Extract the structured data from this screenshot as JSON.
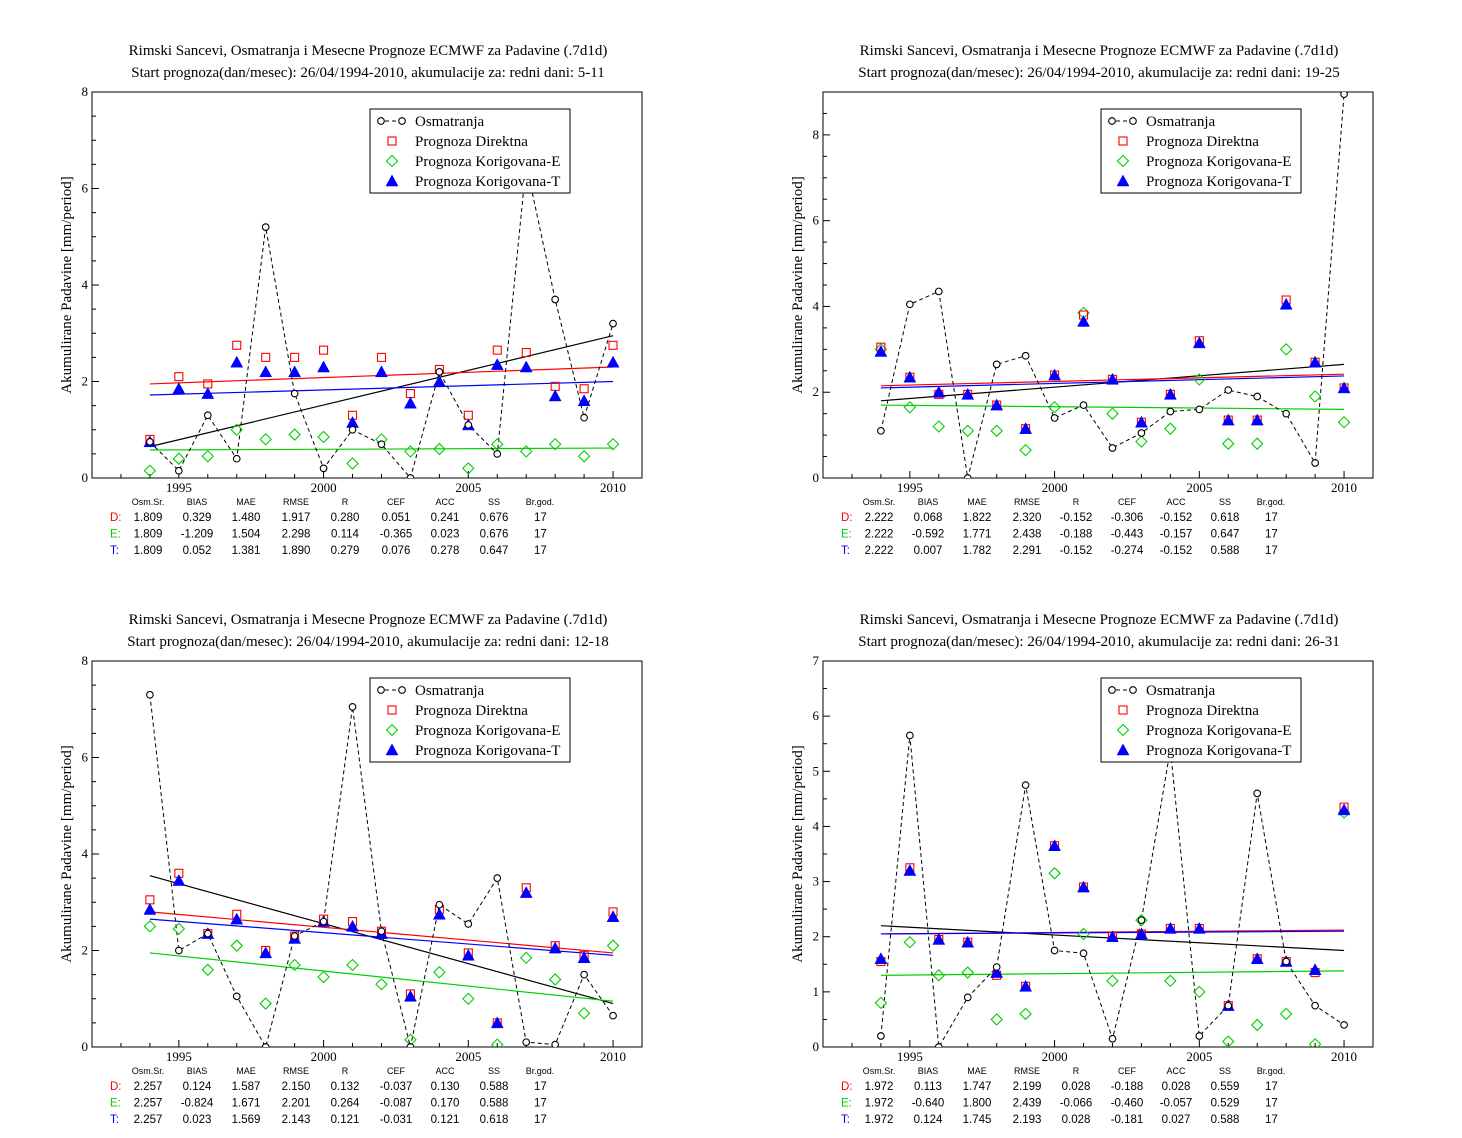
{
  "colors": {
    "observed": "#000000",
    "direct": "#ff0000",
    "corrected_e": "#00d000",
    "corrected_t": "#0000ff"
  },
  "chart_data": [
    {
      "type": "scatter",
      "title": "Rimski Sancevi, Osmatranja i Mesecne Prognoze ECMWF za Padavine (.7d1d)",
      "subtitle": "Start prognoza(dan/mesec): 26/04/1994-2010, akumulacije za: redni dani: 5-11",
      "xlabel": "",
      "ylabel": "Akumulirane Padavine [mm/period]",
      "xlim": [
        1992,
        2011
      ],
      "ylim": [
        0,
        8
      ],
      "x_ticks": [
        1995,
        2000,
        2005,
        2010
      ],
      "y_ticks": [
        0,
        2,
        4,
        6,
        8
      ],
      "x": [
        1994,
        1995,
        1996,
        1997,
        1998,
        1999,
        2000,
        2001,
        2002,
        2003,
        2004,
        2005,
        2006,
        2007,
        2008,
        2009,
        2010
      ],
      "legend_position": "top-right",
      "series": [
        {
          "name": "Osmatranja",
          "style": "observed",
          "values": [
            0.75,
            0.15,
            1.3,
            0.4,
            5.2,
            1.75,
            0.2,
            1.0,
            0.7,
            0.0,
            2.2,
            1.1,
            0.5,
            6.5,
            3.7,
            1.25,
            3.2
          ]
        },
        {
          "name": "Prognoza Direktna",
          "style": "direct",
          "values": [
            0.8,
            2.1,
            1.95,
            2.75,
            2.5,
            2.5,
            2.65,
            1.3,
            2.5,
            1.75,
            2.25,
            1.3,
            2.65,
            2.6,
            1.9,
            1.85,
            2.75
          ]
        },
        {
          "name": "Prognoza Korigovana-E",
          "style": "corrected_e",
          "values": [
            0.15,
            0.4,
            0.45,
            1.0,
            0.8,
            0.9,
            0.85,
            0.3,
            0.8,
            0.55,
            0.6,
            0.2,
            0.7,
            0.55,
            0.7,
            0.45,
            0.7
          ]
        },
        {
          "name": "Prognoza Korigovana-T",
          "style": "corrected_t",
          "values": [
            0.75,
            1.85,
            1.75,
            2.4,
            2.2,
            2.2,
            2.3,
            1.15,
            2.2,
            1.55,
            2.0,
            1.1,
            2.35,
            2.3,
            1.7,
            1.6,
            2.4
          ]
        }
      ],
      "trends": [
        {
          "style": "observed",
          "y0": 0.65,
          "y1": 2.95
        },
        {
          "style": "direct",
          "y0": 1.95,
          "y1": 2.3
        },
        {
          "style": "corrected_e",
          "y0": 0.58,
          "y1": 0.62
        },
        {
          "style": "corrected_t",
          "y0": 1.72,
          "y1": 2.0
        }
      ],
      "stats": {
        "headers": [
          "Osm.Sr.",
          "BIAS",
          "MAE",
          "RMSE",
          "R",
          "CEF",
          "ACC",
          "SS",
          "Br.god."
        ],
        "rows": [
          {
            "label": "D:",
            "style": "direct",
            "values": [
              "1.809",
              "0.329",
              "1.480",
              "1.917",
              "0.280",
              "0.051",
              "0.241",
              "0.676",
              "17"
            ]
          },
          {
            "label": "E:",
            "style": "corrected_e",
            "values": [
              "1.809",
              "-1.209",
              "1.504",
              "2.298",
              "0.114",
              "-0.365",
              "0.023",
              "0.676",
              "17"
            ]
          },
          {
            "label": "T:",
            "style": "corrected_t",
            "values": [
              "1.809",
              "0.052",
              "1.381",
              "1.890",
              "0.279",
              "0.076",
              "0.278",
              "0.647",
              "17"
            ]
          }
        ]
      }
    },
    {
      "type": "scatter",
      "title": "Rimski Sancevi, Osmatranja i Mesecne Prognoze ECMWF za Padavine (.7d1d)",
      "subtitle": "Start prognoza(dan/mesec): 26/04/1994-2010, akumulacije za: redni dani: 19-25",
      "xlabel": "",
      "ylabel": "Akumulirane Padavine [mm/period]",
      "xlim": [
        1992,
        2011
      ],
      "ylim": [
        0,
        9
      ],
      "x_ticks": [
        1995,
        2000,
        2005,
        2010
      ],
      "y_ticks": [
        0,
        2,
        4,
        6,
        8
      ],
      "x": [
        1994,
        1995,
        1996,
        1997,
        1998,
        1999,
        2000,
        2001,
        2002,
        2003,
        2004,
        2005,
        2006,
        2007,
        2008,
        2009,
        2010
      ],
      "legend_position": "top-right",
      "series": [
        {
          "name": "Osmatranja",
          "style": "observed",
          "values": [
            1.1,
            4.05,
            4.35,
            0.0,
            2.65,
            2.85,
            1.4,
            1.7,
            0.7,
            1.05,
            1.55,
            1.6,
            2.05,
            1.9,
            1.5,
            0.35,
            8.95
          ]
        },
        {
          "name": "Prognoza Direktna",
          "style": "direct",
          "values": [
            3.05,
            2.35,
            1.95,
            1.95,
            1.7,
            1.15,
            2.4,
            3.8,
            2.3,
            1.3,
            1.95,
            3.2,
            1.35,
            1.35,
            4.15,
            2.7,
            2.1
          ]
        },
        {
          "name": "Prognoza Korigovana-E",
          "style": "corrected_e",
          "values": [
            3.0,
            1.65,
            1.2,
            1.1,
            1.1,
            0.65,
            1.65,
            3.85,
            1.5,
            0.85,
            1.15,
            2.3,
            0.8,
            0.8,
            3.0,
            1.9,
            1.3
          ]
        },
        {
          "name": "Prognoza Korigovana-T",
          "style": "corrected_t",
          "values": [
            2.95,
            2.35,
            2.0,
            1.95,
            1.7,
            1.15,
            2.4,
            3.65,
            2.3,
            1.3,
            1.95,
            3.15,
            1.35,
            1.35,
            4.05,
            2.7,
            2.1
          ]
        }
      ],
      "trends": [
        {
          "style": "observed",
          "y0": 1.8,
          "y1": 2.65
        },
        {
          "style": "direct",
          "y0": 2.15,
          "y1": 2.42
        },
        {
          "style": "corrected_e",
          "y0": 1.7,
          "y1": 1.6
        },
        {
          "style": "corrected_t",
          "y0": 2.1,
          "y1": 2.38
        }
      ],
      "stats": {
        "headers": [
          "Osm.Sr.",
          "BIAS",
          "MAE",
          "RMSE",
          "R",
          "CEF",
          "ACC",
          "SS",
          "Br.god."
        ],
        "rows": [
          {
            "label": "D:",
            "style": "direct",
            "values": [
              "2.222",
              "0.068",
              "1.822",
              "2.320",
              "-0.152",
              "-0.306",
              "-0.152",
              "0.618",
              "17"
            ]
          },
          {
            "label": "E:",
            "style": "corrected_e",
            "values": [
              "2.222",
              "-0.592",
              "1.771",
              "2.438",
              "-0.188",
              "-0.443",
              "-0.157",
              "0.647",
              "17"
            ]
          },
          {
            "label": "T:",
            "style": "corrected_t",
            "values": [
              "2.222",
              "0.007",
              "1.782",
              "2.291",
              "-0.152",
              "-0.274",
              "-0.152",
              "0.588",
              "17"
            ]
          }
        ]
      }
    },
    {
      "type": "scatter",
      "title": "Rimski Sancevi, Osmatranja i Mesecne Prognoze ECMWF za Padavine (.7d1d)",
      "subtitle": "Start prognoza(dan/mesec): 26/04/1994-2010, akumulacije za: redni dani: 12-18",
      "xlabel": "",
      "ylabel": "Akumulirane Padavine [mm/period]",
      "xlim": [
        1992,
        2011
      ],
      "ylim": [
        0,
        8
      ],
      "x_ticks": [
        1995,
        2000,
        2005,
        2010
      ],
      "y_ticks": [
        0,
        2,
        4,
        6,
        8
      ],
      "x": [
        1994,
        1995,
        1996,
        1997,
        1998,
        1999,
        2000,
        2001,
        2002,
        2003,
        2004,
        2005,
        2006,
        2007,
        2008,
        2009,
        2010
      ],
      "legend_position": "top-right",
      "series": [
        {
          "name": "Osmatranja",
          "style": "observed",
          "values": [
            7.3,
            2.0,
            2.35,
            1.05,
            0.0,
            2.3,
            2.6,
            7.05,
            2.4,
            0.0,
            2.95,
            2.55,
            3.5,
            0.1,
            0.05,
            1.5,
            0.65
          ]
        },
        {
          "name": "Prognoza Direktna",
          "style": "direct",
          "values": [
            3.05,
            3.6,
            2.35,
            2.75,
            2.0,
            2.3,
            2.65,
            2.6,
            2.4,
            1.1,
            2.85,
            1.95,
            0.5,
            3.3,
            2.1,
            1.9,
            2.8
          ]
        },
        {
          "name": "Prognoza Korigovana-E",
          "style": "corrected_e",
          "values": [
            2.5,
            2.45,
            1.6,
            2.1,
            0.9,
            1.7,
            1.45,
            1.7,
            1.3,
            0.15,
            1.55,
            1.0,
            0.05,
            1.85,
            1.4,
            0.7,
            2.1
          ]
        },
        {
          "name": "Prognoza Korigovana-T",
          "style": "corrected_t",
          "values": [
            2.85,
            3.45,
            2.35,
            2.65,
            1.95,
            2.25,
            2.6,
            2.5,
            2.35,
            1.05,
            2.75,
            1.9,
            0.5,
            3.2,
            2.05,
            1.85,
            2.7
          ]
        }
      ],
      "trends": [
        {
          "style": "observed",
          "y0": 3.55,
          "y1": 0.9
        },
        {
          "style": "direct",
          "y0": 2.8,
          "y1": 1.95
        },
        {
          "style": "corrected_e",
          "y0": 1.95,
          "y1": 0.95
        },
        {
          "style": "corrected_t",
          "y0": 2.65,
          "y1": 1.9
        }
      ],
      "stats": {
        "headers": [
          "Osm.Sr.",
          "BIAS",
          "MAE",
          "RMSE",
          "R",
          "CEF",
          "ACC",
          "SS",
          "Br.god."
        ],
        "rows": [
          {
            "label": "D:",
            "style": "direct",
            "values": [
              "2.257",
              "0.124",
              "1.587",
              "2.150",
              "0.132",
              "-0.037",
              "0.130",
              "0.588",
              "17"
            ]
          },
          {
            "label": "E:",
            "style": "corrected_e",
            "values": [
              "2.257",
              "-0.824",
              "1.671",
              "2.201",
              "0.264",
              "-0.087",
              "0.170",
              "0.588",
              "17"
            ]
          },
          {
            "label": "T:",
            "style": "corrected_t",
            "values": [
              "2.257",
              "0.023",
              "1.569",
              "2.143",
              "0.121",
              "-0.031",
              "0.121",
              "0.618",
              "17"
            ]
          }
        ]
      }
    },
    {
      "type": "scatter",
      "title": "Rimski Sancevi, Osmatranja i Mesecne Prognoze ECMWF za Padavine (.7d1d)",
      "subtitle": "Start prognoza(dan/mesec): 26/04/1994-2010, akumulacije za: redni dani: 26-31",
      "xlabel": "",
      "ylabel": "Akumulirane Padavine [mm/period]",
      "xlim": [
        1992,
        2011
      ],
      "ylim": [
        0,
        7
      ],
      "x_ticks": [
        1995,
        2000,
        2005,
        2010
      ],
      "y_ticks": [
        0,
        1,
        2,
        3,
        4,
        5,
        6,
        7
      ],
      "x": [
        1994,
        1995,
        1996,
        1997,
        1998,
        1999,
        2000,
        2001,
        2002,
        2003,
        2004,
        2005,
        2006,
        2007,
        2008,
        2009,
        2010
      ],
      "legend_position": "top-right",
      "series": [
        {
          "name": "Osmatranja",
          "style": "observed",
          "values": [
            0.2,
            5.65,
            0.0,
            0.9,
            1.45,
            4.75,
            1.75,
            1.7,
            0.15,
            2.3,
            5.4,
            0.2,
            0.75,
            4.6,
            1.55,
            0.75,
            0.4
          ]
        },
        {
          "name": "Prognoza Direktna",
          "style": "direct",
          "values": [
            1.55,
            3.25,
            1.95,
            1.9,
            1.3,
            1.1,
            3.65,
            2.9,
            2.0,
            2.05,
            2.15,
            2.15,
            0.75,
            1.6,
            1.55,
            1.35,
            4.35
          ]
        },
        {
          "name": "Prognoza Korigovana-E",
          "style": "corrected_e",
          "values": [
            0.8,
            1.9,
            1.3,
            1.35,
            0.5,
            0.6,
            3.15,
            2.05,
            1.2,
            2.3,
            1.2,
            1.0,
            0.1,
            0.4,
            0.6,
            0.05,
            4.25
          ]
        },
        {
          "name": "Prognoza Korigovana-T",
          "style": "corrected_t",
          "values": [
            1.6,
            3.2,
            1.95,
            1.9,
            1.35,
            1.1,
            3.65,
            2.9,
            2.0,
            2.05,
            2.15,
            2.15,
            0.75,
            1.6,
            1.55,
            1.4,
            4.3
          ]
        }
      ],
      "trends": [
        {
          "style": "observed",
          "y0": 2.2,
          "y1": 1.75
        },
        {
          "style": "direct",
          "y0": 2.05,
          "y1": 2.12
        },
        {
          "style": "corrected_e",
          "y0": 1.3,
          "y1": 1.38
        },
        {
          "style": "corrected_t",
          "y0": 2.05,
          "y1": 2.1
        }
      ],
      "stats": {
        "headers": [
          "Osm.Sr.",
          "BIAS",
          "MAE",
          "RMSE",
          "R",
          "CEF",
          "ACC",
          "SS",
          "Br.god."
        ],
        "rows": [
          {
            "label": "D:",
            "style": "direct",
            "values": [
              "1.972",
              "0.113",
              "1.747",
              "2.199",
              "0.028",
              "-0.188",
              "0.028",
              "0.559",
              "17"
            ]
          },
          {
            "label": "E:",
            "style": "corrected_e",
            "values": [
              "1.972",
              "-0.640",
              "1.800",
              "2.439",
              "-0.066",
              "-0.460",
              "-0.057",
              "0.529",
              "17"
            ]
          },
          {
            "label": "T:",
            "style": "corrected_t",
            "values": [
              "1.972",
              "0.124",
              "1.745",
              "2.193",
              "0.028",
              "-0.181",
              "0.027",
              "0.588",
              "17"
            ]
          }
        ]
      }
    }
  ]
}
